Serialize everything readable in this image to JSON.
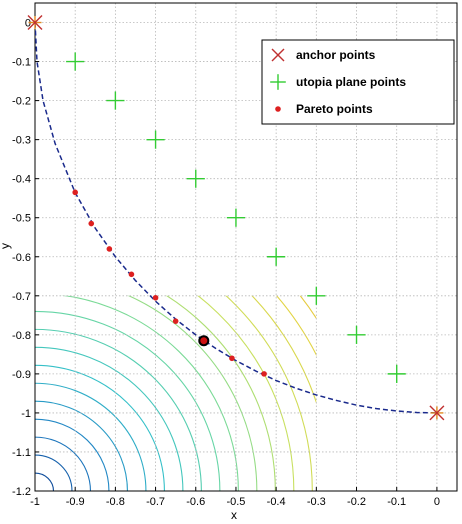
{
  "chart_data": {
    "type": "line",
    "title": "",
    "xlabel": "x",
    "ylabel": "y",
    "xlim": [
      -1,
      0.05
    ],
    "ylim": [
      -1.2,
      0.05
    ],
    "grid": true,
    "xticks": [
      -1,
      -0.9,
      -0.8,
      -0.7,
      -0.6,
      -0.5,
      -0.4,
      -0.3,
      -0.2,
      -0.1,
      0
    ],
    "xtick_labels": [
      "-1",
      "-0.9",
      "-0.8",
      "-0.7",
      "-0.6",
      "-0.5",
      "-0.4",
      "-0.3",
      "-0.2",
      "-0.1",
      "0"
    ],
    "yticks": [
      0,
      -0.1,
      -0.2,
      -0.3,
      -0.4,
      -0.5,
      -0.6,
      -0.7,
      -0.8,
      -0.9,
      -1,
      -1.1,
      -1.2
    ],
    "ytick_labels": [
      "0",
      "-0.1",
      "-0.2",
      "-0.3",
      "-0.4",
      "-0.5",
      "-0.6",
      "-0.7",
      "-0.8",
      "-0.9",
      "-1",
      "-1.1",
      "-1.2"
    ],
    "legend_position": "top-right",
    "series": [
      {
        "name": "anchor points",
        "marker": "x",
        "color": "#c03030",
        "x": [
          -1,
          0
        ],
        "y": [
          0,
          -1
        ]
      },
      {
        "name": "utopia plane points",
        "marker": "+",
        "color": "#33cc33",
        "x": [
          -0.9,
          -0.8,
          -0.7,
          -0.6,
          -0.5,
          -0.4,
          -0.3,
          -0.2,
          -0.1
        ],
        "y": [
          -0.1,
          -0.2,
          -0.3,
          -0.4,
          -0.5,
          -0.6,
          -0.7,
          -0.8,
          -0.9
        ]
      },
      {
        "name": "Pareto points",
        "marker": "dot",
        "color": "#dd2020",
        "x": [
          -0.9,
          -0.86,
          -0.815,
          -0.76,
          -0.7,
          -0.65,
          -0.58,
          -0.51,
          -0.43
        ],
        "y": [
          -0.435,
          -0.515,
          -0.58,
          -0.645,
          -0.705,
          -0.765,
          -0.815,
          -0.86,
          -0.9
        ]
      }
    ],
    "pareto_front": {
      "style": "dashed",
      "color": "#1a2a8c",
      "x": [
        -1,
        -0.995,
        -0.98,
        -0.95,
        -0.9,
        -0.85,
        -0.8,
        -0.75,
        -0.7,
        -0.65,
        -0.6,
        -0.55,
        -0.5,
        -0.45,
        -0.4,
        -0.35,
        -0.3,
        -0.25,
        -0.2,
        -0.15,
        -0.1,
        -0.05,
        0
      ],
      "y": [
        0,
        -0.1,
        -0.2,
        -0.31,
        -0.436,
        -0.527,
        -0.6,
        -0.661,
        -0.714,
        -0.76,
        -0.8,
        -0.835,
        -0.866,
        -0.893,
        -0.917,
        -0.937,
        -0.954,
        -0.968,
        -0.98,
        -0.989,
        -0.995,
        -0.999,
        -1
      ]
    },
    "highlighted_point": {
      "x": -0.58,
      "y": -0.815,
      "color": "#cc1010"
    },
    "contour_region": {
      "x_range": [
        -1,
        -0.3
      ],
      "y_range": [
        -1.2,
        -0.7
      ],
      "levels": [
        0.05,
        0.1,
        0.15,
        0.2,
        0.25,
        0.3,
        0.35,
        0.4,
        0.45,
        0.5,
        0.55,
        0.6,
        0.65,
        0.7,
        0.75,
        0.8,
        0.85,
        0.9,
        0.95,
        1.0,
        1.05,
        1.1,
        1.15,
        1.2,
        1.25,
        1.3,
        1.35,
        1.4
      ],
      "colormap": [
        "#0a3a8c",
        "#1f7fc4",
        "#35c0c8",
        "#6ed9a0",
        "#c8e060",
        "#e6d240",
        "#e8a040",
        "#c85a40",
        "#7a2a2a"
      ]
    }
  }
}
